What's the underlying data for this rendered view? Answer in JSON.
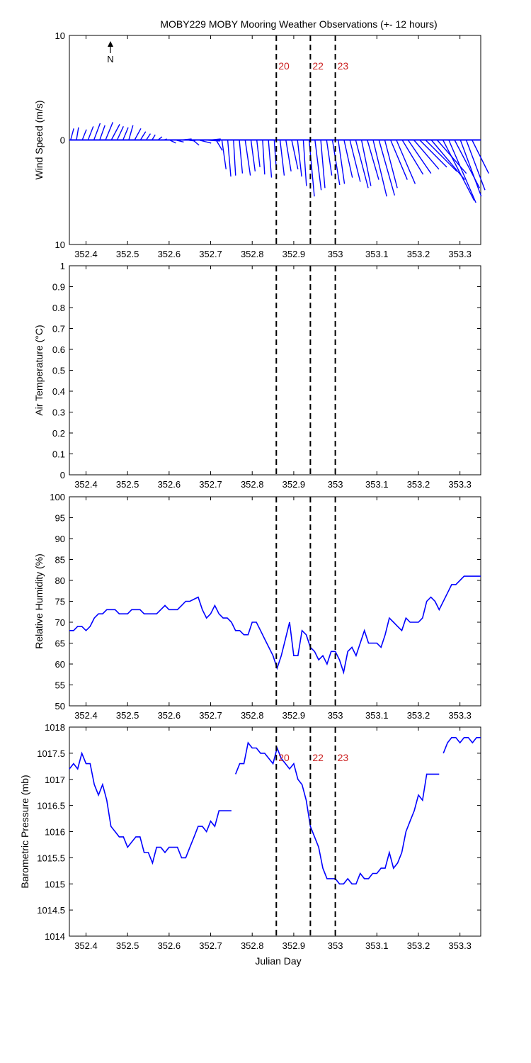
{
  "title": "MOBY229 MOBY Mooring Weather Observations (+- 12 hours)",
  "north_label": "N",
  "x_label": "Julian Day",
  "x_ticks": [
    "352.4",
    "352.5",
    "352.6",
    "352.7",
    "352.8",
    "352.9",
    "353",
    "353.1",
    "353.2",
    "353.3"
  ],
  "colors": {
    "series": "#0000ff",
    "annotation": "#cc2222",
    "axes": "#000000"
  },
  "chart_data": [
    {
      "type": "line",
      "name": "wind",
      "ylabel": "Wind Speed (m/s)",
      "xlim": [
        352.36,
        353.35
      ],
      "ylim": [
        -10,
        10
      ],
      "ytick_labels": [
        "10",
        "0",
        "10"
      ],
      "ytick_values": [
        -10,
        0,
        10
      ],
      "vlines": [
        352.858,
        352.94,
        353.0
      ],
      "vline_labels": [
        "20",
        "22",
        "23"
      ],
      "note": "wind stick vectors, direction relative to north",
      "sticks": {
        "x": [
          352.363,
          352.377,
          352.391,
          352.405,
          352.419,
          352.433,
          352.447,
          352.461,
          352.475,
          352.489,
          352.503,
          352.517,
          352.531,
          352.545,
          352.559,
          352.573,
          352.587,
          352.601,
          352.615,
          352.629,
          352.643,
          352.657,
          352.671,
          352.685,
          352.699,
          352.713,
          352.727,
          352.741,
          352.755,
          352.769,
          352.783,
          352.797,
          352.811,
          352.825,
          352.839,
          352.853,
          352.867,
          352.881,
          352.895,
          352.909,
          352.923,
          352.937,
          352.951,
          352.965,
          352.979,
          352.993,
          353.007,
          353.021,
          353.035,
          353.049,
          353.063,
          353.077,
          353.091,
          353.105,
          353.119,
          353.133,
          353.147,
          353.161,
          353.175,
          353.189,
          353.203,
          353.217,
          353.231,
          353.245,
          353.259,
          353.273,
          353.287,
          353.301,
          353.315,
          353.329
        ],
        "u": [
          0.3,
          0.2,
          0.4,
          0.5,
          0.6,
          0.5,
          0.7,
          0.8,
          0.6,
          0.5,
          0.4,
          0.6,
          0.5,
          0.4,
          0.3,
          0.4,
          0.3,
          0.6,
          0.8,
          1.0,
          0.8,
          0.6,
          1.2,
          1.5,
          1.0,
          0.6,
          0.4,
          0.3,
          0.2,
          0.3,
          0.5,
          0.4,
          0.3,
          0.2,
          0.3,
          0.2,
          0.4,
          0.5,
          0.6,
          0.4,
          0.3,
          0.5,
          0.6,
          0.4,
          0.5,
          0.7,
          0.6,
          0.8,
          1.0,
          1.2,
          0.9,
          1.1,
          1.3,
          1.5,
          1.2,
          1.6,
          1.8,
          2.0,
          2.2,
          2.4,
          2.6,
          3.0,
          3.2,
          2.8,
          3.0,
          2.6,
          2.4,
          2.0,
          1.8,
          1.6
        ],
        "v": [
          1.1,
          1.2,
          1.0,
          1.3,
          1.6,
          1.4,
          1.7,
          1.5,
          1.3,
          1.2,
          1.4,
          1.1,
          0.8,
          0.6,
          0.5,
          0.3,
          0.1,
          -0.3,
          -0.2,
          0.1,
          -0.1,
          -0.5,
          -0.3,
          -0.1,
          0.1,
          -1.0,
          -2.8,
          -3.5,
          -3.4,
          -3.2,
          -3.4,
          -3.0,
          -2.6,
          -3.3,
          -3.6,
          -2.8,
          -3.4,
          -3.0,
          -2.8,
          -3.5,
          -4.4,
          -5.4,
          -4.8,
          -4.6,
          -3.4,
          -4.3,
          -4.2,
          -3.6,
          -4.0,
          -4.6,
          -4.4,
          -3.8,
          -5.4,
          -5.3,
          -4.6,
          -3.8,
          -4.2,
          -3.3,
          -3.2,
          -2.8,
          -2.6,
          -3.0,
          -3.8,
          -3.2,
          -5.8,
          -6.0,
          -4.6,
          -5.4,
          -4.8,
          -3.2
        ]
      }
    },
    {
      "type": "line",
      "name": "airtemp",
      "ylabel": "Air Temperature (°C)",
      "xlim": [
        352.36,
        353.35
      ],
      "ylim": [
        0,
        1
      ],
      "ytick_labels": [
        "0",
        "0.1",
        "0.2",
        "0.3",
        "0.4",
        "0.5",
        "0.6",
        "0.7",
        "0.8",
        "0.9",
        "1"
      ],
      "ytick_values": [
        0,
        0.1,
        0.2,
        0.3,
        0.4,
        0.5,
        0.6,
        0.7,
        0.8,
        0.9,
        1
      ],
      "vlines": [
        352.858,
        352.94,
        353.0
      ],
      "vline_labels": [],
      "x": [],
      "y": []
    },
    {
      "type": "line",
      "name": "humidity",
      "ylabel": "Relative Humidity (%)",
      "xlim": [
        352.36,
        353.35
      ],
      "ylim": [
        50,
        100
      ],
      "ytick_labels": [
        "50",
        "55",
        "60",
        "65",
        "70",
        "75",
        "80",
        "85",
        "90",
        "95",
        "100"
      ],
      "ytick_values": [
        50,
        55,
        60,
        65,
        70,
        75,
        80,
        85,
        90,
        95,
        100
      ],
      "vlines": [
        352.858,
        352.94,
        353.0
      ],
      "vline_labels": [],
      "x": [
        352.36,
        352.37,
        352.38,
        352.39,
        352.4,
        352.41,
        352.42,
        352.43,
        352.44,
        352.45,
        352.46,
        352.47,
        352.48,
        352.49,
        352.5,
        352.51,
        352.52,
        352.53,
        352.54,
        352.55,
        352.56,
        352.57,
        352.58,
        352.59,
        352.6,
        352.61,
        352.62,
        352.63,
        352.64,
        352.65,
        352.66,
        352.67,
        352.68,
        352.69,
        352.7,
        352.71,
        352.72,
        352.73,
        352.74,
        352.75,
        352.76,
        352.77,
        352.78,
        352.79,
        352.8,
        352.81,
        352.82,
        352.83,
        352.84,
        352.85,
        352.86,
        352.87,
        352.88,
        352.89,
        352.9,
        352.91,
        352.92,
        352.93,
        352.94,
        352.95,
        352.96,
        352.97,
        352.98,
        352.99,
        353.0,
        353.01,
        353.02,
        353.03,
        353.04,
        353.05,
        353.06,
        353.07,
        353.08,
        353.09,
        353.1,
        353.11,
        353.12,
        353.13,
        353.14,
        353.15,
        353.16,
        353.17,
        353.18,
        353.19,
        353.2,
        353.21,
        353.22,
        353.23,
        353.24,
        353.25,
        353.26,
        353.27,
        353.28,
        353.29,
        353.3,
        353.31,
        353.32,
        353.33,
        353.34,
        353.35
      ],
      "y": [
        68,
        68,
        69,
        69,
        68,
        69,
        71,
        72,
        72,
        73,
        73,
        73,
        72,
        72,
        72,
        73,
        73,
        73,
        72,
        72,
        72,
        72,
        73,
        74,
        73,
        73,
        73,
        74,
        75,
        75,
        75.5,
        76,
        73,
        71,
        72,
        74,
        72,
        71,
        71,
        70,
        68,
        68,
        67,
        67,
        70,
        70,
        68,
        66,
        64,
        62,
        59,
        62,
        66,
        70,
        62,
        62,
        68,
        67,
        64,
        63,
        61,
        62,
        60,
        63,
        63,
        61,
        58,
        63,
        64,
        62,
        65,
        68,
        65,
        65,
        65,
        64,
        67,
        71,
        70,
        69,
        68,
        71,
        70,
        70,
        70,
        71,
        75,
        76,
        75,
        73,
        75,
        77,
        79,
        79,
        80,
        81,
        81,
        81,
        81,
        81
      ]
    },
    {
      "type": "line",
      "name": "pressure",
      "ylabel": "Barometric Pressure (mb)",
      "xlim": [
        352.36,
        353.35
      ],
      "ylim": [
        1014,
        1018
      ],
      "ytick_labels": [
        "1014",
        "1014.5",
        "1015",
        "1015.5",
        "1016",
        "1016.5",
        "1017",
        "1017.5",
        "1018"
      ],
      "ytick_values": [
        1014,
        1014.5,
        1015,
        1015.5,
        1016,
        1016.5,
        1017,
        1017.5,
        1018
      ],
      "vlines": [
        352.858,
        352.94,
        353.0
      ],
      "vline_labels": [
        "20",
        "22",
        "23"
      ],
      "segments": [
        {
          "x": [
            352.36,
            352.37,
            352.38,
            352.39,
            352.4,
            352.41,
            352.42,
            352.43,
            352.44,
            352.45,
            352.46,
            352.47,
            352.48,
            352.49,
            352.5,
            352.51,
            352.52,
            352.53,
            352.54,
            352.55,
            352.56,
            352.57,
            352.58,
            352.59,
            352.6,
            352.61,
            352.62,
            352.63,
            352.64,
            352.65,
            352.66,
            352.67,
            352.68,
            352.69,
            352.7,
            352.71,
            352.72,
            352.73,
            352.74,
            352.75
          ],
          "y": [
            1017.2,
            1017.3,
            1017.2,
            1017.5,
            1017.3,
            1017.3,
            1016.9,
            1016.7,
            1016.9,
            1016.6,
            1016.1,
            1016.0,
            1015.9,
            1015.9,
            1015.7,
            1015.8,
            1015.9,
            1015.9,
            1015.6,
            1015.6,
            1015.4,
            1015.7,
            1015.7,
            1015.6,
            1015.7,
            1015.7,
            1015.7,
            1015.5,
            1015.5,
            1015.7,
            1015.9,
            1016.1,
            1016.1,
            1016.0,
            1016.2,
            1016.1,
            1016.4,
            1016.4,
            1016.4,
            1016.4
          ]
        },
        {
          "x": [
            352.76,
            352.77,
            352.78,
            352.79,
            352.8,
            352.81,
            352.82,
            352.83,
            352.84,
            352.85,
            352.86,
            352.87,
            352.88,
            352.89,
            352.9,
            352.91,
            352.92,
            352.93,
            352.94,
            352.95,
            352.96,
            352.97,
            352.98,
            352.99,
            353.0,
            353.01,
            353.02,
            353.03,
            353.04,
            353.05,
            353.06,
            353.07,
            353.08,
            353.09,
            353.1,
            353.11,
            353.12,
            353.13,
            353.14,
            353.15,
            353.16,
            353.17,
            353.18,
            353.19,
            353.2,
            353.21,
            353.22,
            353.23,
            353.24,
            353.25
          ],
          "y": [
            1017.1,
            1017.3,
            1017.3,
            1017.7,
            1017.6,
            1017.6,
            1017.5,
            1017.5,
            1017.4,
            1017.3,
            1017.6,
            1017.4,
            1017.3,
            1017.2,
            1017.3,
            1017.0,
            1016.9,
            1016.6,
            1016.1,
            1015.9,
            1015.7,
            1015.3,
            1015.1,
            1015.1,
            1015.1,
            1015.0,
            1015.0,
            1015.1,
            1015.0,
            1015.0,
            1015.2,
            1015.1,
            1015.1,
            1015.2,
            1015.2,
            1015.3,
            1015.3,
            1015.6,
            1015.3,
            1015.4,
            1015.6,
            1016.0,
            1016.2,
            1016.4,
            1016.7,
            1016.6,
            1017.1,
            1017.1,
            1017.1,
            1017.1
          ]
        },
        {
          "x": [
            353.26,
            353.27,
            353.28,
            353.29,
            353.3,
            353.31,
            353.32,
            353.33,
            353.34,
            353.35
          ],
          "y": [
            1017.5,
            1017.7,
            1017.8,
            1017.8,
            1017.7,
            1017.8,
            1017.8,
            1017.7,
            1017.8,
            1017.8
          ]
        }
      ]
    }
  ]
}
